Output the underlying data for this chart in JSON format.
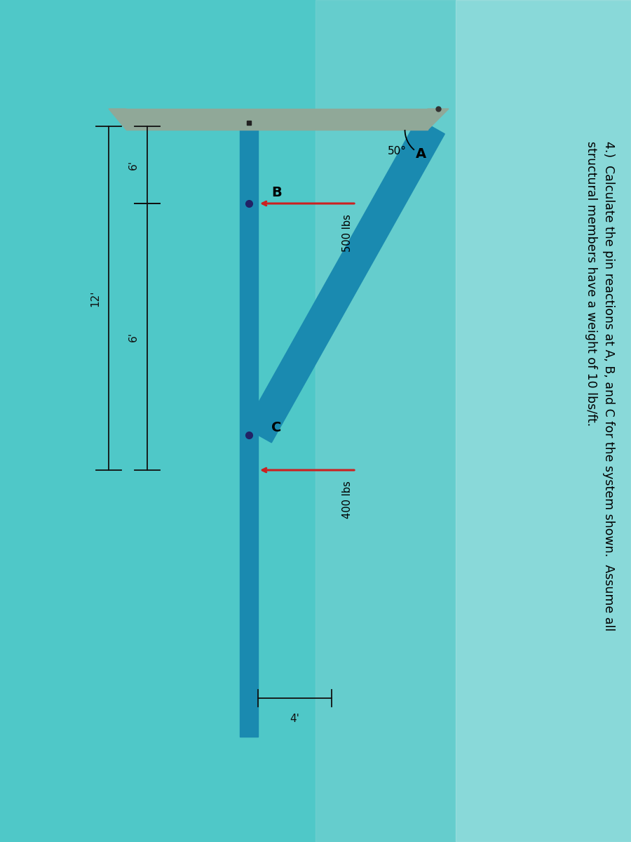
{
  "bg_color": "#4fc8c8",
  "bg_color_right": "#b0e8e8",
  "title_text": "4.)  Calculate the pin reactions at A, B, and C for the system shown.  Assume all\nstructural members have a weight of 10 lbs/ft.",
  "title_fontsize": 12.5,
  "beam_color": "#1a8ab0",
  "top_beam_color": "#90a898",
  "arrow_color": "#cc2020",
  "dim_color": "#111111",
  "angle_label": "50°",
  "label_A": "A",
  "label_B": "B",
  "label_C": "C",
  "load1_label": "500 lbs",
  "load2_label": "400 lbs",
  "dim_6_top": "6'",
  "dim_6_bot": "6'",
  "dim_12": "12'",
  "dim_4": "4'",
  "pin_dot_color": "#222266"
}
